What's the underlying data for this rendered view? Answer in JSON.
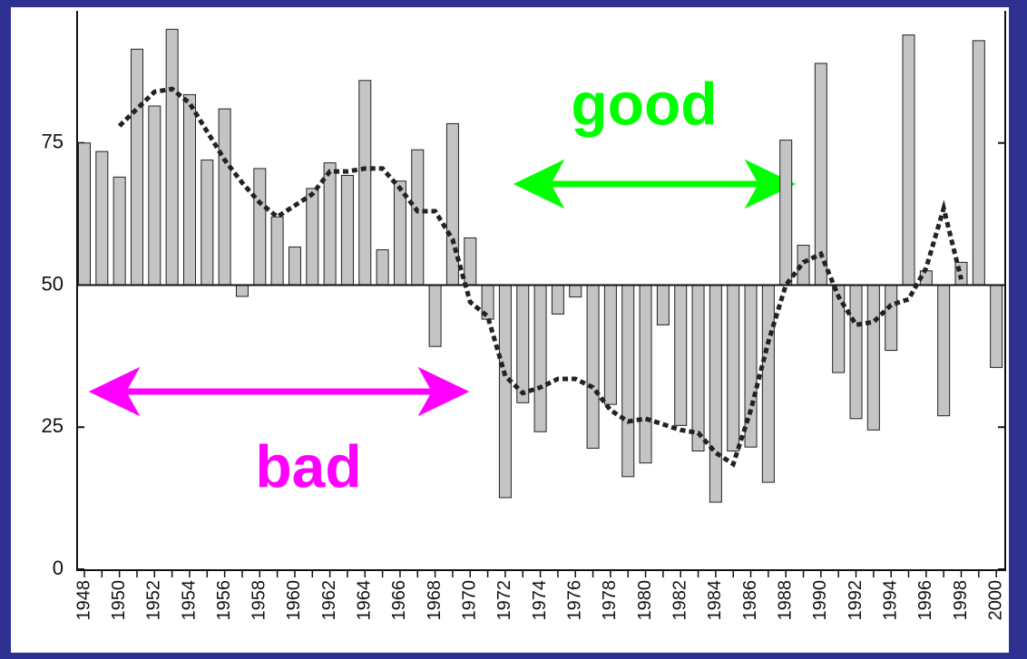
{
  "chart_data": {
    "type": "bar",
    "categories": [
      "1948",
      null,
      "1950",
      null,
      "1952",
      null,
      "1954",
      null,
      "1956",
      null,
      "1958",
      null,
      "1960",
      null,
      "1962",
      null,
      "1964",
      null,
      "1966",
      null,
      "1968",
      null,
      "1970",
      null,
      "1972",
      null,
      "1974",
      null,
      "1976",
      null,
      "1978",
      null,
      "1980",
      null,
      "1982",
      null,
      "1984",
      null,
      "1986",
      null,
      "1988",
      null,
      "1990",
      null,
      "1992",
      null,
      "1994",
      null,
      "1996",
      null,
      "1998",
      null,
      "2000"
    ],
    "series": [
      {
        "type": "bar",
        "color": "#c4c4c4",
        "values": [
          75,
          73.5,
          69,
          91.5,
          81.5,
          95,
          83.5,
          72,
          81,
          48,
          70.5,
          62,
          56.7,
          67,
          71.5,
          69.3,
          86,
          56.2,
          68.3,
          73.8,
          39.2,
          78.4,
          58.3,
          44,
          12.6,
          29.3,
          24.2,
          44.9,
          47.9,
          21.3,
          29,
          16.3,
          18.7,
          43,
          25.3,
          20.8,
          11.8,
          20.8,
          21.5,
          15.3,
          75.5,
          57,
          89,
          34.6,
          26.5,
          24.5,
          38.5,
          94,
          52.5,
          27,
          54,
          93,
          35.5
        ]
      },
      {
        "type": "line",
        "color": "#222222",
        "values": [
          null,
          null,
          78,
          81,
          84,
          84.5,
          82,
          77,
          72,
          68,
          64.5,
          62,
          64,
          66,
          70,
          70,
          70.5,
          70.5,
          67,
          63,
          63,
          58,
          47,
          44.5,
          34,
          31,
          32,
          33.5,
          33.5,
          32,
          28,
          26,
          26.5,
          25.5,
          24.5,
          24,
          20.5,
          18.5,
          28,
          40,
          50,
          54,
          55.5,
          48,
          43,
          43.5,
          46.5,
          47.5,
          53,
          63.5,
          51,
          null,
          null
        ]
      }
    ],
    "baseline": 50,
    "ylim": [
      0,
      98
    ],
    "yticks": [
      0,
      25,
      50,
      75
    ],
    "annotations": [
      {
        "text": "good",
        "color": "#00ff00"
      },
      {
        "text": "bad",
        "color": "#ff00ff"
      }
    ]
  }
}
